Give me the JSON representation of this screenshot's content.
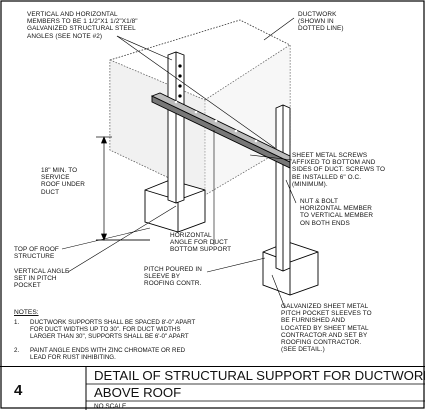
{
  "labels": {
    "steel_angles": "VERTICAL AND HORIZONTAL\nMEMBERS TO BE 1 1/2\"X1 1/2\"X1/8\"\nGALVANIZED STRUCTURAL STEEL\nANGLES (SEE NOTE #2)",
    "ductwork": "DUCTWORK\n(SHOWN IN\nDOTTED LINE)",
    "min_clearance": "18\" MIN. TO\nSERVICE\nROOF UNDER\nDUCT",
    "sheet_metal_screws": "SHEET METAL SCREWS\nAFFIXED TO BOTTOM AND\nSIDES OF DUCT. SCREWS TO\nBE INSTALLED 6\" O.C.\n(MINIMUM).",
    "nut_bolt": "NUT & BOLT\nHORIZONTAL MEMBER\nTO VERTICAL MEMBER\nON BOTH ENDS",
    "horizontal_angle": "HORIZONTAL\nANGLE FOR DUCT\nBOTTOM SUPPORT",
    "top_of_roof": "TOP OF ROOF\nSTRUCTURE",
    "vertical_angle": "VERTICAL ANGLE\nSET IN PITCH\nPOCKET",
    "pitch_poured": "PITCH POURED IN\nSLEEVE BY\nROOFING CONTR.",
    "pitch_pocket": "GALVANIZED SHEET METAL\nPITCH POCKET SLEEVES TO\nBE FURNISHED AND\nLOCATED BY SHEET METAL\nCONTRACTOR AND SET BY\nROOFING CONTRACTOR.\n(SEE DETAIL.)"
  },
  "notes": {
    "heading": "NOTES:",
    "items": [
      {
        "num": "1.",
        "text": "DUCTWORK SUPPORTS SHALL BE SPACED 8'-0\" APART\nFOR DUCT WIDTHS UP TO 30\". FOR DUCT WIDTHS\nLARGER THAN 30\", SUPPORTS SHALL BE 6'-0\" APART"
      },
      {
        "num": "2.",
        "text": "PAINT ANGLE ENDS WITH ZINC CHROMATE OR RED\nLEAD FOR RUST INHIBITING."
      }
    ]
  },
  "title_block": {
    "detail_number": "4",
    "title_line1": "DETAIL OF STRUCTURAL SUPPORT FOR DUCTWORK",
    "title_line2": "ABOVE ROOF",
    "scale": "NO SCALE"
  }
}
